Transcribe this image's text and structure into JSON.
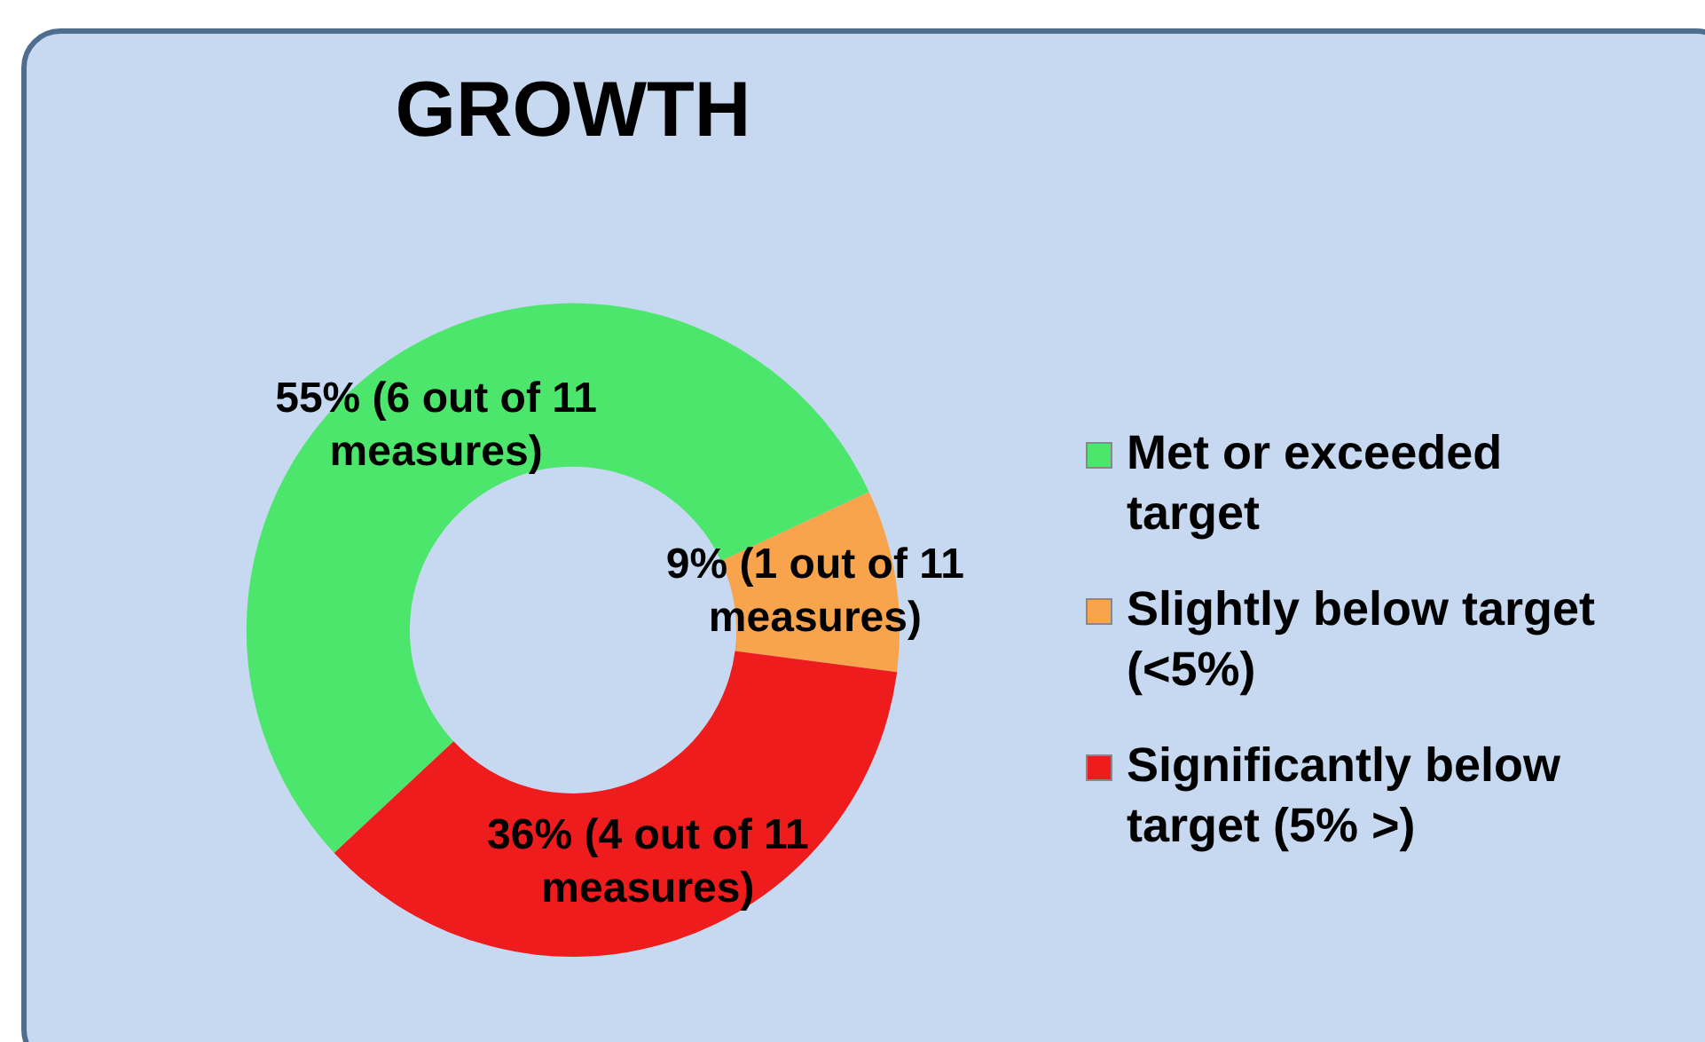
{
  "chart_data": {
    "type": "donut",
    "title": "GROWTH",
    "categories": [
      "Met or exceeded target",
      "Slightly below target (<5%)",
      "Significantly below target (5% >)"
    ],
    "values": [
      55,
      9,
      36
    ],
    "colors": [
      "#4de66c",
      "#f7a44c",
      "#ee1c1c"
    ],
    "value_labels": [
      "55% (6 out of 11 measures)",
      "9% (1 out of 11 measures)",
      "36% (4 out of 11 measures)"
    ],
    "legend": "right"
  }
}
